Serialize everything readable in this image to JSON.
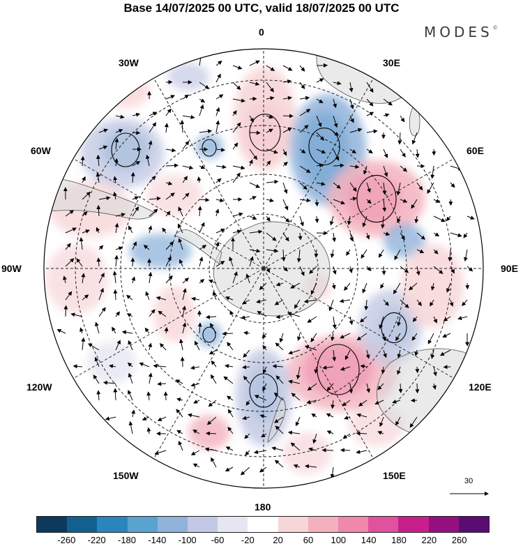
{
  "title": "Base 14/07/2025 00 UTC, valid 18/07/2025 00 UTC",
  "brand": "MODES",
  "brand_mark": "©",
  "longitude_labels": {
    "lon_0": "0",
    "lon_30e": "30E",
    "lon_60e": "60E",
    "lon_90e": "90E",
    "lon_120e": "120E",
    "lon_150e": "150E",
    "lon_180": "180",
    "lon_150w": "150W",
    "lon_120w": "120W",
    "lon_90w": "90W",
    "lon_60w": "60W",
    "lon_30w": "30W"
  },
  "reference_vector_label": "30",
  "colorbar": {
    "colors": [
      "#0b3a5c",
      "#11608f",
      "#2b85bd",
      "#5aa3d0",
      "#8fb3db",
      "#c3c9e4",
      "#e6e6f2",
      "#ffffff",
      "#f7d6d8",
      "#f3b1bd",
      "#ef88aa",
      "#e0529d",
      "#c81f8c",
      "#960f80",
      "#5b0c72"
    ],
    "tick_labels": [
      "-260",
      "-220",
      "-180",
      "-140",
      "-100",
      "-60",
      "-20",
      "20",
      "60",
      "100",
      "140",
      "180",
      "220",
      "260"
    ]
  }
}
